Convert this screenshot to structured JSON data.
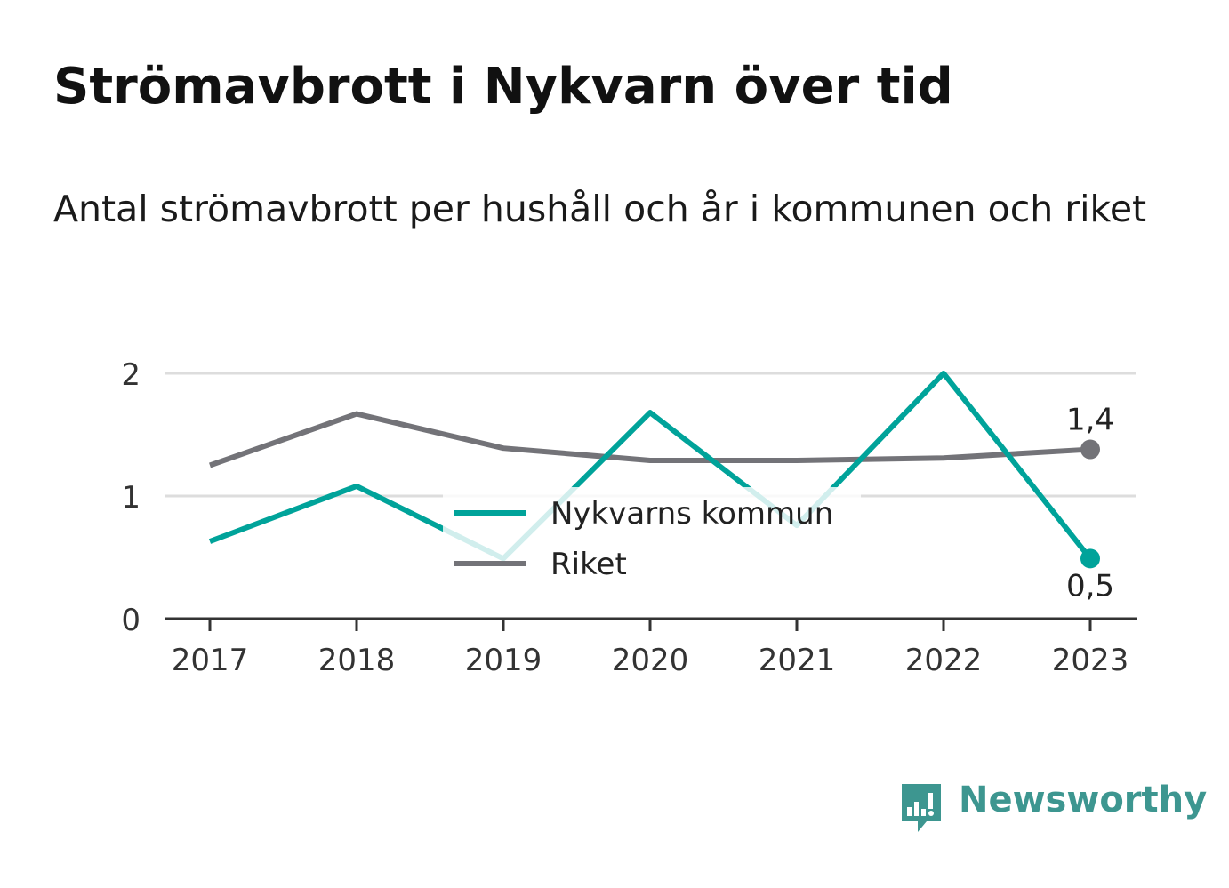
{
  "title": "Strömavbrott i Nykvarn över tid",
  "subtitle": "Antal strömavbrott per hushåll och år i kommunen och riket",
  "brand": {
    "name": "Newsworthy",
    "icon": "newsworthy-logo-icon",
    "color": "#3d9690"
  },
  "colors": {
    "kommun": "#00a39a",
    "riket": "#737378",
    "grid": "#dddddd",
    "axis": "#333333",
    "text": "#333333"
  },
  "chart_data": {
    "type": "line",
    "title": "Strömavbrott i Nykvarn över tid",
    "subtitle": "Antal strömavbrott per hushåll och år i kommunen och riket",
    "xlabel": "",
    "ylabel": "",
    "x": [
      "2017",
      "2018",
      "2019",
      "2020",
      "2021",
      "2022",
      "2023"
    ],
    "ylim": [
      0,
      2
    ],
    "yticks": [
      "0",
      "1",
      "2"
    ],
    "grid": true,
    "legend_position": "center",
    "series": [
      {
        "name": "Nykvarns kommun",
        "color": "#00a39a",
        "values": [
          0.63,
          1.08,
          0.49,
          1.68,
          0.76,
          2.0,
          0.49
        ],
        "end_label": "0,5"
      },
      {
        "name": "Riket",
        "color": "#737378",
        "values": [
          1.25,
          1.67,
          1.39,
          1.29,
          1.29,
          1.31,
          1.38
        ],
        "end_label": "1,4"
      }
    ]
  }
}
